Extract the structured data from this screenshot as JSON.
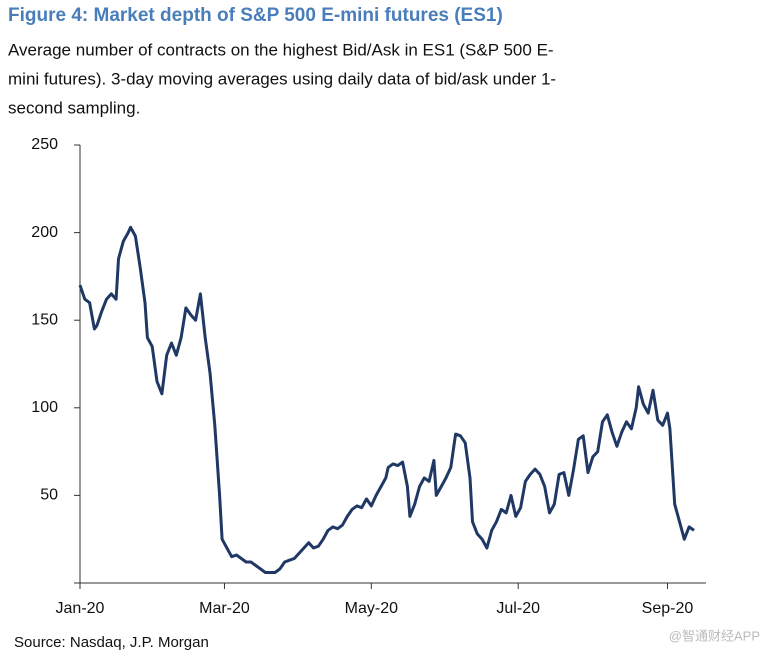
{
  "chart_data": {
    "type": "line",
    "title": "Figure 4: Market depth of S&P 500 E-mini futures (ES1)",
    "subtitle": [
      "Average number of contracts on the highest Bid/Ask in ES1 (S&P 500 E-",
      "mini futures). 3-day moving averages using daily data of bid/ask under 1-",
      "second sampling."
    ],
    "source": "Source: Nasdaq, J.P. Morgan",
    "watermark": "@智通财经APP",
    "xlim": [
      0,
      260
    ],
    "xticks": [
      {
        "value": 0,
        "label": "Jan-20"
      },
      {
        "value": 60,
        "label": "Mar-20"
      },
      {
        "value": 121,
        "label": "May-20"
      },
      {
        "value": 182,
        "label": "Jul-20"
      },
      {
        "value": 244,
        "label": "Sep-20"
      }
    ],
    "ylim": [
      0,
      250
    ],
    "yticks": [
      50,
      100,
      150,
      200,
      250
    ],
    "grid": false,
    "series": [
      {
        "color": "#1f3864",
        "x": [
          0,
          2,
          4,
          6,
          7,
          9,
          11,
          13,
          15,
          16,
          18,
          20,
          21,
          23,
          25,
          27,
          28,
          30,
          32,
          34,
          36,
          38,
          40,
          42,
          44,
          46,
          48,
          50,
          52,
          54,
          56,
          58,
          59,
          61,
          63,
          65,
          67,
          69,
          71,
          73,
          75,
          77,
          79,
          81,
          83,
          85,
          87,
          89,
          91,
          93,
          95,
          97,
          99,
          101,
          103,
          105,
          107,
          109,
          111,
          113,
          115,
          117,
          119,
          121,
          123,
          125,
          127,
          128,
          130,
          132,
          134,
          136,
          137,
          139,
          141,
          143,
          145,
          147,
          148,
          150,
          152,
          154,
          156,
          158,
          160,
          162,
          163,
          165,
          167,
          169,
          171,
          173,
          175,
          177,
          179,
          181,
          183,
          185,
          187,
          189,
          191,
          193,
          195,
          197,
          199,
          201,
          203,
          205,
          207,
          209,
          211,
          213,
          215,
          217,
          219,
          221,
          223,
          225,
          227,
          229,
          231,
          232,
          234,
          236,
          238,
          240,
          242,
          244,
          245,
          247,
          249,
          251,
          253,
          255
        ],
        "values": [
          170,
          162,
          160,
          145,
          147,
          155,
          162,
          165,
          162,
          185,
          195,
          200,
          203,
          198,
          180,
          160,
          140,
          135,
          115,
          108,
          130,
          137,
          130,
          140,
          157,
          153,
          150,
          165,
          140,
          120,
          90,
          50,
          25,
          20,
          15,
          16,
          14,
          12,
          12,
          10,
          8,
          6,
          6,
          6,
          8,
          12,
          13,
          14,
          17,
          20,
          23,
          20,
          21,
          25,
          30,
          32,
          31,
          33,
          38,
          42,
          44,
          43,
          48,
          44,
          50,
          55,
          60,
          66,
          68,
          67,
          69,
          55,
          38,
          45,
          55,
          60,
          58,
          70,
          50,
          55,
          60,
          66,
          85,
          84,
          80,
          60,
          35,
          28,
          25,
          20,
          30,
          35,
          42,
          40,
          50,
          38,
          43,
          58,
          62,
          65,
          62,
          55,
          40,
          45,
          62,
          63,
          50,
          65,
          82,
          84,
          63,
          72,
          75,
          92,
          96,
          86,
          78,
          86,
          92,
          88,
          100,
          112,
          102,
          97,
          110,
          93,
          90,
          97,
          88,
          45,
          35,
          25,
          32,
          30
        ]
      }
    ]
  }
}
